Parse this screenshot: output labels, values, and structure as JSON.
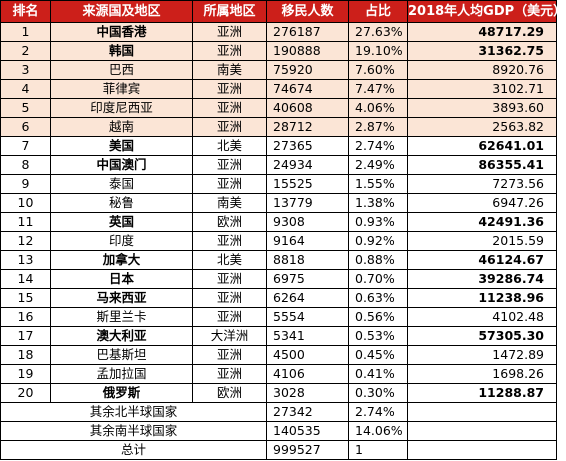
{
  "colors": {
    "header_bg": "#cc1f1a",
    "header_text": "#ffffff",
    "highlight_row_bg": "#fbe5d6",
    "border": "#000000"
  },
  "headers": {
    "rank": "排名",
    "country": "来源国及地区",
    "region": "所属地区",
    "count": "移民人数",
    "share": "占比",
    "gdp": "2018年人均GDP（美元）"
  },
  "rows": [
    {
      "rank": "1",
      "country": "中国香港",
      "region": "亚洲",
      "count": "276187",
      "share": "27.63%",
      "gdp": "48717.29"
    },
    {
      "rank": "2",
      "country": "韩国",
      "region": "亚洲",
      "count": "190888",
      "share": "19.10%",
      "gdp": "31362.75"
    },
    {
      "rank": "3",
      "country": "巴西",
      "region": "南美",
      "count": "75920",
      "share": "7.60%",
      "gdp": "8920.76"
    },
    {
      "rank": "4",
      "country": "菲律宾",
      "region": "亚洲",
      "count": "74674",
      "share": "7.47%",
      "gdp": "3102.71"
    },
    {
      "rank": "5",
      "country": "印度尼西亚",
      "region": "亚洲",
      "count": "40608",
      "share": "4.06%",
      "gdp": "3893.60"
    },
    {
      "rank": "6",
      "country": "越南",
      "region": "亚洲",
      "count": "28712",
      "share": "2.87%",
      "gdp": "2563.82"
    },
    {
      "rank": "7",
      "country": "美国",
      "region": "北美",
      "count": "27365",
      "share": "2.74%",
      "gdp": "62641.01"
    },
    {
      "rank": "8",
      "country": "中国澳门",
      "region": "亚洲",
      "count": "24934",
      "share": "2.49%",
      "gdp": "86355.41"
    },
    {
      "rank": "9",
      "country": "泰国",
      "region": "亚洲",
      "count": "15525",
      "share": "1.55%",
      "gdp": "7273.56"
    },
    {
      "rank": "10",
      "country": "秘鲁",
      "region": "南美",
      "count": "13779",
      "share": "1.38%",
      "gdp": "6947.26"
    },
    {
      "rank": "11",
      "country": "英国",
      "region": "欧洲",
      "count": "9308",
      "share": "0.93%",
      "gdp": "42491.36"
    },
    {
      "rank": "12",
      "country": "印度",
      "region": "亚洲",
      "count": "9164",
      "share": "0.92%",
      "gdp": "2015.59"
    },
    {
      "rank": "13",
      "country": "加拿大",
      "region": "北美",
      "count": "8818",
      "share": "0.88%",
      "gdp": "46124.67"
    },
    {
      "rank": "14",
      "country": "日本",
      "region": "亚洲",
      "count": "6975",
      "share": "0.70%",
      "gdp": "39286.74"
    },
    {
      "rank": "15",
      "country": "马来西亚",
      "region": "亚洲",
      "count": "6264",
      "share": "0.63%",
      "gdp": "11238.96"
    },
    {
      "rank": "16",
      "country": "斯里兰卡",
      "region": "亚洲",
      "count": "5554",
      "share": "0.56%",
      "gdp": "4102.48"
    },
    {
      "rank": "17",
      "country": "澳大利亚",
      "region": "大洋洲",
      "count": "5341",
      "share": "0.53%",
      "gdp": "57305.30"
    },
    {
      "rank": "18",
      "country": "巴基斯坦",
      "region": "亚洲",
      "count": "4500",
      "share": "0.45%",
      "gdp": "1472.89"
    },
    {
      "rank": "19",
      "country": "孟加拉国",
      "region": "亚洲",
      "count": "4106",
      "share": "0.41%",
      "gdp": "1698.26"
    },
    {
      "rank": "20",
      "country": "俄罗斯",
      "region": "欧洲",
      "count": "3028",
      "share": "0.30%",
      "gdp": "11288.87"
    }
  ],
  "footer": [
    {
      "label": "其余北半球国家",
      "count": "27342",
      "share": "2.74%"
    },
    {
      "label": "其余南半球国家",
      "count": "140535",
      "share": "14.06%"
    },
    {
      "label": "总计",
      "count": "999527",
      "share": "1"
    }
  ]
}
